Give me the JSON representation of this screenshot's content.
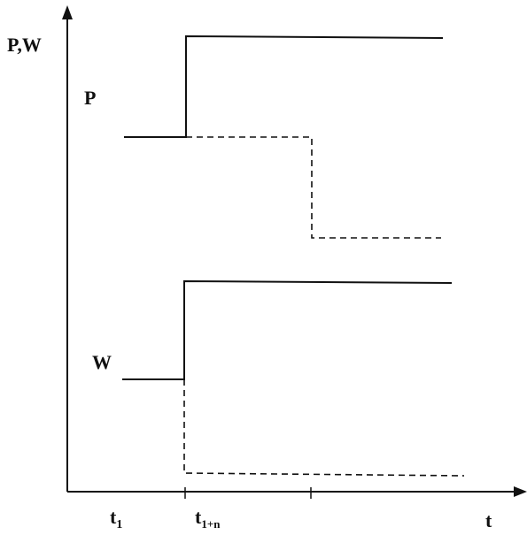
{
  "y_axis_label": "P,W",
  "x_axis_label": "t",
  "curve_labels": {
    "p": "P",
    "w": "W"
  },
  "x_tick_labels": {
    "t1_base": "t",
    "t1_sub": "1",
    "t1n_base": "t",
    "t1n_sub": "1+n"
  },
  "line_color": "#111111",
  "background": "#ffffff"
}
